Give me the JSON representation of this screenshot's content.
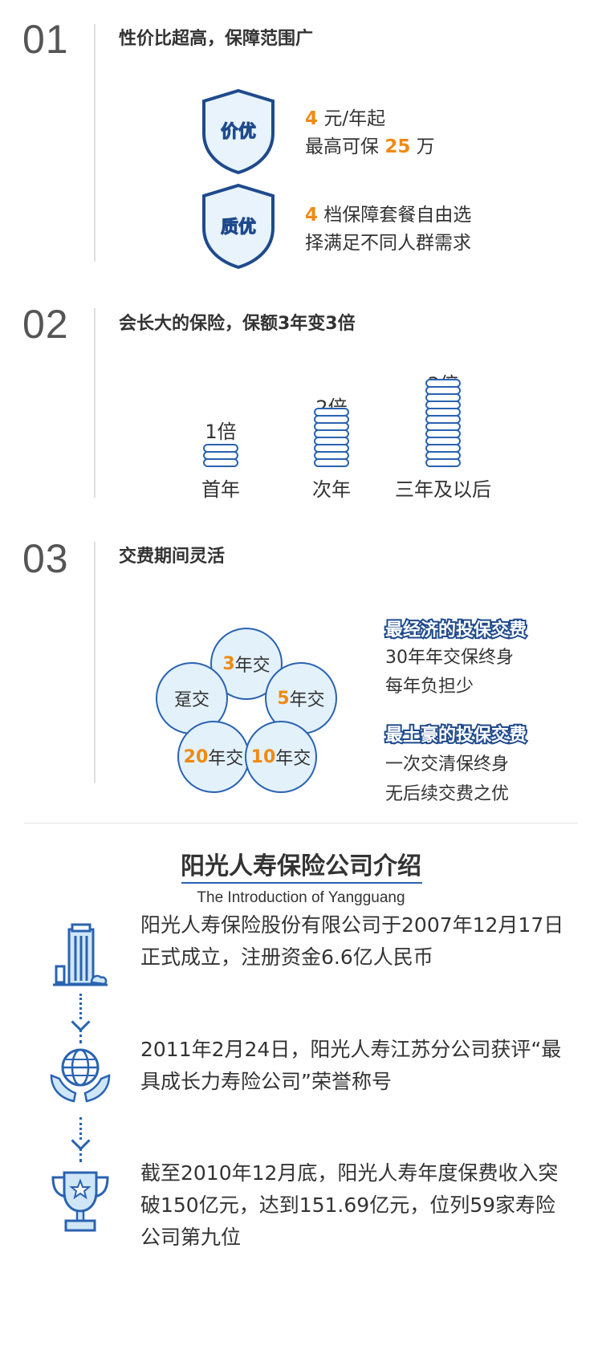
{
  "section1": {
    "number": "01",
    "title": "性价比超高，保障范围广",
    "badges": [
      {
        "label": "价优",
        "line1_num": "4",
        "line1_text": " 元/年起",
        "line2_prefix": "最高可保 ",
        "line2_num": "25",
        "line2_suffix": " 万"
      },
      {
        "label": "质优",
        "line1_num": "4",
        "line1_text": " 档保障套餐自由选",
        "line2_prefix": "择满足不同人群需求",
        "line2_num": "",
        "line2_suffix": ""
      }
    ]
  },
  "section2": {
    "number": "02",
    "title": "会长大的保险，保额3年变3倍",
    "bars": [
      {
        "top": "1倍",
        "caption": "首年",
        "level": 1
      },
      {
        "top": "2倍",
        "caption": "次年",
        "level": 2
      },
      {
        "top": "3倍",
        "caption": "三年及以后",
        "level": 3
      }
    ]
  },
  "section3": {
    "number": "03",
    "title": "交费期间灵活",
    "circles": [
      {
        "num": "3",
        "text": "年交"
      },
      {
        "num": "",
        "text": "趸交"
      },
      {
        "num": "5",
        "text": "年交"
      },
      {
        "num": "20",
        "text": "年交"
      },
      {
        "num": "10",
        "text": "年交"
      }
    ],
    "tags": [
      {
        "title": "最经济的投保交费",
        "line1": "30年年交保终身",
        "line2": "每年负担少"
      },
      {
        "title": "最土豪的投保交费",
        "line1": "一次交清保终身",
        "line2": "无后续交费之优"
      }
    ]
  },
  "intro": {
    "title": "阳光人寿保险公司介绍",
    "subtitle": "The Introduction of Yangguang",
    "items": [
      {
        "icon": "building-icon",
        "text": "阳光人寿保险股份有限公司于2007年12月17日正式成立，注册资金6.6亿人民币"
      },
      {
        "icon": "globe-hands-icon",
        "text": "2011年2月24日，阳光人寿江苏分公司获评“最具成长力寿险公司”荣誉称号"
      },
      {
        "icon": "trophy-icon",
        "text": "截至2010年12月底，阳光人寿年度保费收入突破150亿元，达到151.69亿元，位列59家寿险公司第九位"
      }
    ]
  },
  "colors": {
    "accent": "#2a63b1",
    "highlight": "#f08a12",
    "circle_fill": "#e3f1fb"
  }
}
